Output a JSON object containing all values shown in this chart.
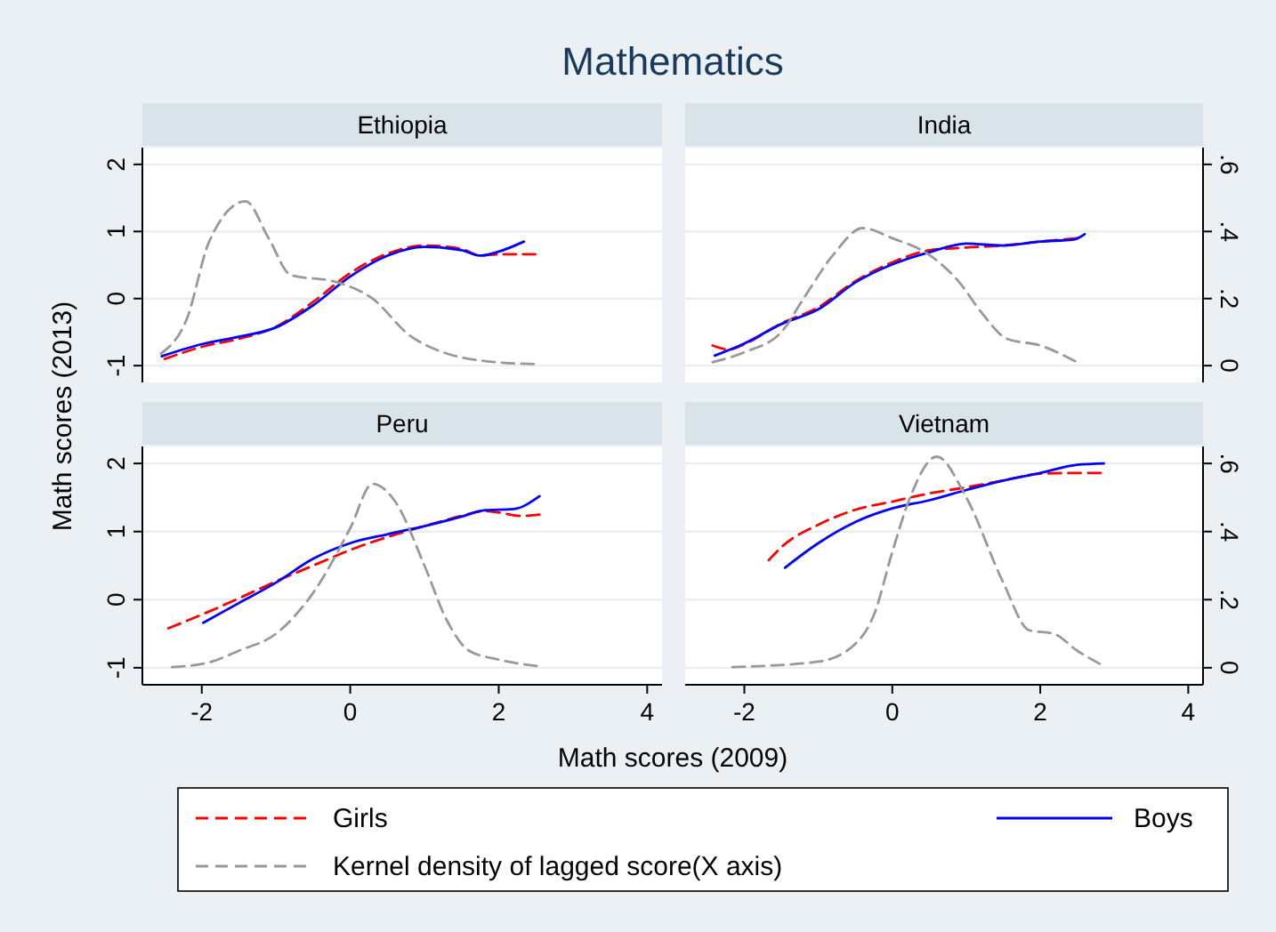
{
  "chart_data": [
    {
      "type": "line",
      "title": "Mathematics",
      "subtitle": "Ethiopia",
      "xlabel": "Math scores (2009)",
      "ylabel": "Math scores (2013)",
      "legend": "bottom",
      "xlim": [
        -2.8,
        4.2
      ],
      "ylim": [
        -1.25,
        2.25
      ],
      "yticks": [
        -1,
        0,
        1,
        2
      ],
      "y2lim": [
        -0.05,
        0.65
      ],
      "grid": "y",
      "series": [
        {
          "name": "Girls",
          "color": "#ff0000",
          "line_style": "dashed",
          "x": [
            -2.5,
            -2,
            -1.5,
            -1,
            -0.5,
            0,
            0.5,
            1,
            1.5,
            1.75,
            2,
            2.5
          ],
          "values": [
            -0.9,
            -0.72,
            -0.6,
            -0.42,
            -0.05,
            0.38,
            0.67,
            0.79,
            0.74,
            0.64,
            0.66,
            0.66
          ]
        },
        {
          "name": "Boys",
          "color": "#0000ff",
          "line_style": "solid",
          "x": [
            -2.54,
            -2,
            -1.5,
            -1,
            -0.5,
            0,
            0.5,
            1,
            1.5,
            1.75,
            2,
            2.34
          ],
          "values": [
            -0.86,
            -0.68,
            -0.57,
            -0.43,
            -0.1,
            0.33,
            0.64,
            0.77,
            0.72,
            0.64,
            0.7,
            0.85
          ]
        },
        {
          "name": "Kernel density of lagged score(X axis)",
          "color": "#999999",
          "line_style": "dashed",
          "axis": "y2",
          "x": [
            -2.55,
            -2.2,
            -1.9,
            -1.41,
            -1.1,
            -0.8,
            -0.2,
            0.3,
            0.8,
            1.2,
            1.8,
            2.54
          ],
          "values": [
            0.036,
            0.14,
            0.37,
            0.49,
            0.38,
            0.27,
            0.25,
            0.2,
            0.09,
            0.044,
            0.014,
            0.004
          ]
        }
      ]
    },
    {
      "type": "line",
      "subtitle": "India",
      "xlim": [
        -2.8,
        4.2
      ],
      "ylim": [
        -1.25,
        2.25
      ],
      "y2lim": [
        -0.05,
        0.65
      ],
      "y2ticks": [
        0,
        {
          "value": 0.2,
          "label": ".2"
        },
        {
          "value": 0.4,
          "label": ".4"
        },
        {
          "value": 0.6,
          "label": ".6"
        }
      ],
      "grid": "y",
      "series": [
        {
          "color": "#ff0000",
          "line_style": "dashed",
          "x": [
            -2.43,
            -2.2,
            -2,
            -1.5,
            -1,
            -0.5,
            0,
            0.5,
            1,
            1.5,
            2,
            2.5
          ],
          "values": [
            -0.7,
            -0.76,
            -0.68,
            -0.37,
            -0.13,
            0.26,
            0.54,
            0.72,
            0.76,
            0.79,
            0.85,
            0.9
          ]
        },
        {
          "color": "#0000ff",
          "line_style": "solid",
          "x": [
            -2.4,
            -2,
            -1.5,
            -1,
            -0.5,
            0,
            0.5,
            1,
            1.5,
            2,
            2.45,
            2.6
          ],
          "values": [
            -0.85,
            -0.67,
            -0.38,
            -0.16,
            0.24,
            0.51,
            0.69,
            0.82,
            0.79,
            0.85,
            0.88,
            0.96
          ]
        },
        {
          "color": "#999999",
          "line_style": "dashed",
          "axis": "y2",
          "x": [
            -2.43,
            -2,
            -1.5,
            -1.2,
            -0.8,
            -0.4,
            0,
            0.5,
            0.9,
            1.2,
            1.55,
            2,
            2.5
          ],
          "values": [
            0.01,
            0.04,
            0.1,
            0.2,
            0.33,
            0.41,
            0.38,
            0.33,
            0.25,
            0.16,
            0.08,
            0.06,
            0.01
          ]
        }
      ]
    },
    {
      "type": "line",
      "subtitle": "Peru",
      "xlim": [
        -2.8,
        4.2
      ],
      "xticks": [
        -2,
        0,
        2,
        4
      ],
      "ylim": [
        -1.25,
        2.25
      ],
      "yticks": [
        -1,
        0,
        1,
        2
      ],
      "y2lim": [
        -0.05,
        0.65
      ],
      "grid": "y",
      "series": [
        {
          "color": "#ff0000",
          "line_style": "dashed",
          "x": [
            -2.45,
            -2,
            -1.5,
            -1,
            -0.5,
            0,
            0.5,
            1,
            1.5,
            1.8,
            2,
            2.3,
            2.55
          ],
          "values": [
            -0.42,
            -0.22,
            0.02,
            0.27,
            0.5,
            0.73,
            0.92,
            1.08,
            1.23,
            1.3,
            1.28,
            1.23,
            1.25
          ]
        },
        {
          "color": "#0000ff",
          "line_style": "solid",
          "x": [
            -1.98,
            -1.5,
            -1,
            -0.5,
            0,
            0.5,
            1,
            1.5,
            1.8,
            2.2,
            2.55
          ],
          "values": [
            -0.34,
            -0.05,
            0.25,
            0.6,
            0.83,
            0.96,
            1.08,
            1.22,
            1.31,
            1.33,
            1.52
          ]
        },
        {
          "color": "#999999",
          "line_style": "dashed",
          "axis": "y2",
          "x": [
            -2.4,
            -1.9,
            -1.5,
            -1,
            -0.5,
            0,
            0.3,
            0.6,
            1,
            1.3,
            1.6,
            2,
            2.55
          ],
          "values": [
            0.002,
            0.016,
            0.05,
            0.1,
            0.22,
            0.41,
            0.54,
            0.49,
            0.3,
            0.14,
            0.05,
            0.024,
            0.004
          ]
        }
      ]
    },
    {
      "type": "line",
      "subtitle": "Vietnam",
      "xlim": [
        -2.8,
        4.2
      ],
      "xticks": [
        -2,
        0,
        2,
        4
      ],
      "ylim": [
        -1.25,
        2.25
      ],
      "y2lim": [
        -0.05,
        0.65
      ],
      "y2ticks": [
        0,
        {
          "value": 0.2,
          "label": ".2"
        },
        {
          "value": 0.4,
          "label": ".4"
        },
        {
          "value": 0.6,
          "label": ".6"
        }
      ],
      "grid": "y",
      "series": [
        {
          "color": "#ff0000",
          "line_style": "dashed",
          "x": [
            -1.67,
            -1.49,
            -1,
            -0.5,
            0,
            0.5,
            1,
            1.5,
            2,
            2.5,
            2.82
          ],
          "values": [
            0.58,
            0.78,
            1.1,
            1.32,
            1.44,
            1.56,
            1.65,
            1.75,
            1.85,
            1.86,
            1.86
          ]
        },
        {
          "color": "#0000ff",
          "line_style": "solid",
          "x": [
            -1.45,
            -1,
            -0.5,
            0,
            0.5,
            1,
            1.5,
            2,
            2.5,
            2.86
          ],
          "values": [
            0.47,
            0.83,
            1.14,
            1.34,
            1.46,
            1.61,
            1.75,
            1.86,
            1.98,
            2.0
          ]
        },
        {
          "color": "#999999",
          "line_style": "dashed",
          "axis": "y2",
          "x": [
            -2.16,
            -1,
            -0.5,
            -0.24,
            0,
            0.24,
            0.6,
            1,
            1.5,
            1.85,
            2.18,
            2.5,
            2.86
          ],
          "values": [
            0.002,
            0.018,
            0.07,
            0.16,
            0.34,
            0.5,
            0.62,
            0.5,
            0.25,
            0.11,
            0.1,
            0.05,
            0.005
          ]
        }
      ]
    }
  ]
}
